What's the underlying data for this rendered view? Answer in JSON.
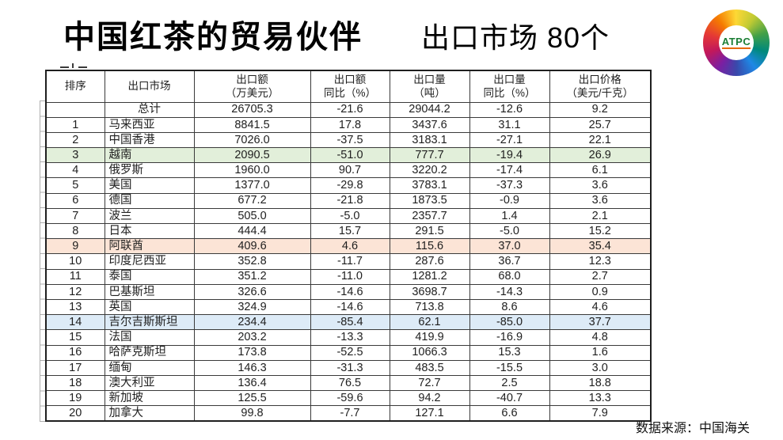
{
  "title": {
    "main": "中国红茶的贸易伙伴",
    "sub": "出口市场 80个"
  },
  "logo": {
    "text": "ATPC"
  },
  "footer": {
    "source": "数据来源：中国海关"
  },
  "table": {
    "headers": [
      {
        "line1": "排序",
        "line2": ""
      },
      {
        "line1": "出口市场",
        "line2": ""
      },
      {
        "line1": "出口额",
        "line2": "（万美元）"
      },
      {
        "line1": "出口额",
        "line2": "同比（%）"
      },
      {
        "line1": "出口量",
        "line2": "（吨）"
      },
      {
        "line1": "出口量",
        "line2": "同比（%）"
      },
      {
        "line1": "出口价格",
        "line2": "（美元/千克）"
      }
    ],
    "highlight_colors": {
      "green": "#e2efda",
      "orange": "#fce4d6",
      "blue": "#ddebf7"
    },
    "rows": [
      {
        "cells": [
          "",
          "总计",
          "26705.3",
          "-21.6",
          "29044.2",
          "-12.6",
          "9.2"
        ],
        "highlight": null
      },
      {
        "cells": [
          "1",
          "马来西亚",
          "8841.5",
          "17.8",
          "3437.6",
          "31.1",
          "25.7"
        ],
        "highlight": null
      },
      {
        "cells": [
          "2",
          "中国香港",
          "7026.0",
          "-37.5",
          "3183.1",
          "-27.1",
          "22.1"
        ],
        "highlight": null
      },
      {
        "cells": [
          "3",
          "越南",
          "2090.5",
          "-51.0",
          "777.7",
          "-19.4",
          "26.9"
        ],
        "highlight": "green"
      },
      {
        "cells": [
          "4",
          "俄罗斯",
          "1960.0",
          "90.7",
          "3220.2",
          "-17.4",
          "6.1"
        ],
        "highlight": null
      },
      {
        "cells": [
          "5",
          "美国",
          "1377.0",
          "-29.8",
          "3783.1",
          "-37.3",
          "3.6"
        ],
        "highlight": null
      },
      {
        "cells": [
          "6",
          "德国",
          "677.2",
          "-21.8",
          "1873.5",
          "-0.9",
          "3.6"
        ],
        "highlight": null
      },
      {
        "cells": [
          "7",
          "波兰",
          "505.0",
          "-5.0",
          "2357.7",
          "1.4",
          "2.1"
        ],
        "highlight": null
      },
      {
        "cells": [
          "8",
          "日本",
          "444.4",
          "15.7",
          "291.5",
          "-5.0",
          "15.2"
        ],
        "highlight": null
      },
      {
        "cells": [
          "9",
          "阿联酋",
          "409.6",
          "4.6",
          "115.6",
          "37.0",
          "35.4"
        ],
        "highlight": "orange"
      },
      {
        "cells": [
          "10",
          "印度尼西亚",
          "352.8",
          "-11.7",
          "287.6",
          "36.7",
          "12.3"
        ],
        "highlight": null
      },
      {
        "cells": [
          "11",
          "泰国",
          "351.2",
          "-11.0",
          "1281.2",
          "68.0",
          "2.7"
        ],
        "highlight": null
      },
      {
        "cells": [
          "12",
          "巴基斯坦",
          "326.6",
          "-14.6",
          "3698.7",
          "-14.3",
          "0.9"
        ],
        "highlight": null
      },
      {
        "cells": [
          "13",
          "英国",
          "324.9",
          "-14.6",
          "713.8",
          "8.6",
          "4.6"
        ],
        "highlight": null
      },
      {
        "cells": [
          "14",
          "吉尔吉斯斯坦",
          "234.4",
          "-85.4",
          "62.1",
          "-85.0",
          "37.7"
        ],
        "highlight": "blue"
      },
      {
        "cells": [
          "15",
          "法国",
          "203.2",
          "-13.3",
          "419.9",
          "-16.9",
          "4.8"
        ],
        "highlight": null
      },
      {
        "cells": [
          "16",
          "哈萨克斯坦",
          "173.8",
          "-52.5",
          "1066.3",
          "15.3",
          "1.6"
        ],
        "highlight": null
      },
      {
        "cells": [
          "17",
          "缅甸",
          "146.3",
          "-31.3",
          "483.5",
          "-15.5",
          "3.0"
        ],
        "highlight": null
      },
      {
        "cells": [
          "18",
          "澳大利亚",
          "136.4",
          "76.5",
          "72.7",
          "2.5",
          "18.8"
        ],
        "highlight": null
      },
      {
        "cells": [
          "19",
          "新加坡",
          "125.5",
          "-59.6",
          "94.2",
          "-40.7",
          "13.3"
        ],
        "highlight": null
      },
      {
        "cells": [
          "20",
          "加拿大",
          "99.8",
          "-7.7",
          "127.1",
          "6.6",
          "7.9"
        ],
        "highlight": null
      }
    ]
  }
}
